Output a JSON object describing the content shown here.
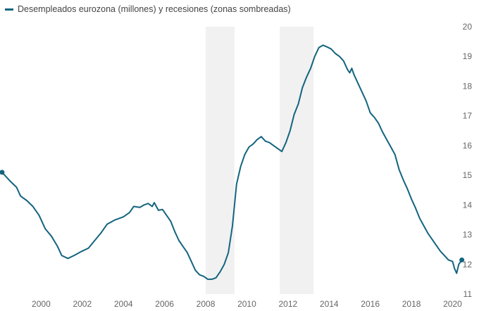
{
  "colors": {
    "line": "#13647f",
    "recession": "#f1f1f1",
    "tick_text": "#666666"
  },
  "chart_data": {
    "type": "line",
    "title": "",
    "legend": {
      "position": "top-left",
      "label": "Desempleados eurozona (millones) y recesiones (zonas sombreadas)"
    },
    "xlabel": "",
    "ylabel": "",
    "xlim": [
      1998.0,
      2020.6
    ],
    "ylim": [
      11,
      20
    ],
    "y_axis_side": "right",
    "x_ticks": [
      "2000",
      "2002",
      "2004",
      "2006",
      "2008",
      "2010",
      "2012",
      "2014",
      "2016",
      "2018",
      "2020"
    ],
    "y_ticks": [
      "11",
      "12",
      "13",
      "14",
      "15",
      "16",
      "17",
      "18",
      "19",
      "20"
    ],
    "grid": false,
    "recessions": [
      [
        2008.0,
        2009.4
      ],
      [
        2011.6,
        2013.25
      ]
    ],
    "endpoint_markers": true,
    "series": [
      {
        "values": [
          [
            1998.1,
            15.1
          ],
          [
            1998.5,
            14.8
          ],
          [
            1998.8,
            14.6
          ],
          [
            1999.0,
            14.3
          ],
          [
            1999.3,
            14.15
          ],
          [
            1999.6,
            13.95
          ],
          [
            1999.9,
            13.65
          ],
          [
            2000.2,
            13.2
          ],
          [
            2000.5,
            12.95
          ],
          [
            2000.8,
            12.6
          ],
          [
            2001.0,
            12.3
          ],
          [
            2001.3,
            12.2
          ],
          [
            2001.6,
            12.3
          ],
          [
            2002.0,
            12.45
          ],
          [
            2002.3,
            12.55
          ],
          [
            2002.6,
            12.8
          ],
          [
            2002.9,
            13.05
          ],
          [
            2003.2,
            13.35
          ],
          [
            2003.6,
            13.5
          ],
          [
            2004.0,
            13.6
          ],
          [
            2004.3,
            13.75
          ],
          [
            2004.5,
            13.95
          ],
          [
            2004.8,
            13.92
          ],
          [
            2005.0,
            14.0
          ],
          [
            2005.2,
            14.05
          ],
          [
            2005.4,
            13.95
          ],
          [
            2005.5,
            14.08
          ],
          [
            2005.7,
            13.82
          ],
          [
            2005.9,
            13.85
          ],
          [
            2006.1,
            13.65
          ],
          [
            2006.3,
            13.45
          ],
          [
            2006.5,
            13.1
          ],
          [
            2006.7,
            12.8
          ],
          [
            2006.9,
            12.6
          ],
          [
            2007.1,
            12.4
          ],
          [
            2007.3,
            12.1
          ],
          [
            2007.5,
            11.8
          ],
          [
            2007.7,
            11.65
          ],
          [
            2007.9,
            11.6
          ],
          [
            2008.1,
            11.5
          ],
          [
            2008.3,
            11.5
          ],
          [
            2008.5,
            11.55
          ],
          [
            2008.7,
            11.75
          ],
          [
            2008.9,
            12.0
          ],
          [
            2009.1,
            12.4
          ],
          [
            2009.3,
            13.3
          ],
          [
            2009.5,
            14.7
          ],
          [
            2009.7,
            15.3
          ],
          [
            2009.9,
            15.7
          ],
          [
            2010.1,
            15.95
          ],
          [
            2010.3,
            16.05
          ],
          [
            2010.5,
            16.2
          ],
          [
            2010.7,
            16.3
          ],
          [
            2010.9,
            16.15
          ],
          [
            2011.1,
            16.1
          ],
          [
            2011.3,
            16.0
          ],
          [
            2011.5,
            15.9
          ],
          [
            2011.7,
            15.8
          ],
          [
            2011.9,
            16.1
          ],
          [
            2012.1,
            16.5
          ],
          [
            2012.3,
            17.05
          ],
          [
            2012.5,
            17.4
          ],
          [
            2012.7,
            17.95
          ],
          [
            2012.9,
            18.3
          ],
          [
            2013.1,
            18.6
          ],
          [
            2013.3,
            19.0
          ],
          [
            2013.5,
            19.3
          ],
          [
            2013.7,
            19.38
          ],
          [
            2013.9,
            19.32
          ],
          [
            2014.1,
            19.25
          ],
          [
            2014.3,
            19.1
          ],
          [
            2014.5,
            19.0
          ],
          [
            2014.7,
            18.85
          ],
          [
            2014.9,
            18.55
          ],
          [
            2015.0,
            18.45
          ],
          [
            2015.1,
            18.6
          ],
          [
            2015.2,
            18.4
          ],
          [
            2015.4,
            18.1
          ],
          [
            2015.6,
            17.8
          ],
          [
            2015.8,
            17.5
          ],
          [
            2016.0,
            17.1
          ],
          [
            2016.2,
            16.95
          ],
          [
            2016.4,
            16.75
          ],
          [
            2016.6,
            16.45
          ],
          [
            2016.8,
            16.2
          ],
          [
            2017.0,
            15.95
          ],
          [
            2017.2,
            15.7
          ],
          [
            2017.4,
            15.2
          ],
          [
            2017.6,
            14.85
          ],
          [
            2017.8,
            14.55
          ],
          [
            2018.0,
            14.2
          ],
          [
            2018.2,
            13.9
          ],
          [
            2018.4,
            13.55
          ],
          [
            2018.6,
            13.3
          ],
          [
            2018.8,
            13.05
          ],
          [
            2019.0,
            12.85
          ],
          [
            2019.2,
            12.65
          ],
          [
            2019.4,
            12.45
          ],
          [
            2019.6,
            12.3
          ],
          [
            2019.8,
            12.15
          ],
          [
            2020.0,
            12.1
          ],
          [
            2020.1,
            11.85
          ],
          [
            2020.2,
            11.7
          ],
          [
            2020.3,
            12.0
          ],
          [
            2020.45,
            12.15
          ]
        ]
      }
    ]
  }
}
